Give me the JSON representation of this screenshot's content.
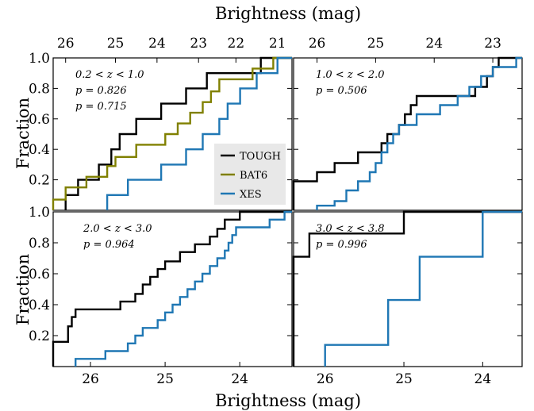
{
  "figure": {
    "top_xlabel": "Brightness (mag)",
    "bottom_xlabel": "Brightness (mag)",
    "ylabel_top": "Fraction",
    "ylabel_bottom": "Fraction"
  },
  "legend": {
    "placement": "inside top-left panel, lower right",
    "entries": [
      {
        "label": "TOUGH",
        "color": "#000000"
      },
      {
        "label": "BAT6",
        "color": "#808000"
      },
      {
        "label": "XES",
        "color": "#1f77b4"
      }
    ]
  },
  "chart_data": [
    {
      "type": "line",
      "panel": "top-left",
      "annotation": [
        "0.2 < z < 1.0",
        "p = 0.826",
        "p = 0.715"
      ],
      "annotation_colors": [
        "#000000",
        "#000000",
        "#808000"
      ],
      "x_top_ticks": [
        "26",
        "25",
        "24",
        "23",
        "22",
        "21"
      ],
      "x_top_tick_values": [
        26.3,
        25.1,
        24.1,
        23.1,
        22.2,
        21.2
      ],
      "xlim": [
        26.6,
        20.85
      ],
      "ylim": [
        0,
        1
      ],
      "yticks": [
        "0.2",
        "0.4",
        "0.6",
        "0.8",
        "1.0"
      ],
      "series": [
        {
          "name": "TOUGH",
          "color": "#000000",
          "points": [
            [
              26.3,
              0.1
            ],
            [
              26.0,
              0.2
            ],
            [
              25.5,
              0.3
            ],
            [
              25.2,
              0.4
            ],
            [
              25.0,
              0.5
            ],
            [
              24.6,
              0.6
            ],
            [
              24.0,
              0.7
            ],
            [
              23.4,
              0.8
            ],
            [
              22.9,
              0.9
            ],
            [
              21.6,
              1.0
            ]
          ]
        },
        {
          "name": "BAT6",
          "color": "#808000",
          "points": [
            [
              26.6,
              0.07
            ],
            [
              26.3,
              0.15
            ],
            [
              25.8,
              0.22
            ],
            [
              25.3,
              0.29
            ],
            [
              25.1,
              0.35
            ],
            [
              24.6,
              0.43
            ],
            [
              23.9,
              0.5
            ],
            [
              23.6,
              0.57
            ],
            [
              23.3,
              0.64
            ],
            [
              23.0,
              0.71
            ],
            [
              22.8,
              0.78
            ],
            [
              22.6,
              0.86
            ],
            [
              21.8,
              0.93
            ],
            [
              21.3,
              1.0
            ]
          ]
        },
        {
          "name": "XES",
          "color": "#1f77b4",
          "points": [
            [
              25.3,
              0.1
            ],
            [
              24.8,
              0.2
            ],
            [
              24.0,
              0.3
            ],
            [
              23.4,
              0.4
            ],
            [
              23.0,
              0.5
            ],
            [
              22.6,
              0.6
            ],
            [
              22.4,
              0.7
            ],
            [
              22.1,
              0.8
            ],
            [
              21.7,
              0.9
            ],
            [
              21.2,
              1.0
            ]
          ]
        }
      ]
    },
    {
      "type": "line",
      "panel": "top-right",
      "annotation": [
        "1.0 < z < 2.0",
        "p = 0.506"
      ],
      "annotation_colors": [
        "#000000",
        "#000000"
      ],
      "x_top_ticks": [
        "26",
        "25",
        "24",
        "23"
      ],
      "x_top_tick_values": [
        26.0,
        25.0,
        24.0,
        23.0
      ],
      "xlim": [
        26.4,
        22.5
      ],
      "ylim": [
        0,
        1
      ],
      "series": [
        {
          "name": "TOUGH",
          "color": "#000000",
          "points": [
            [
              26.4,
              0.19
            ],
            [
              26.0,
              0.25
            ],
            [
              25.7,
              0.31
            ],
            [
              25.3,
              0.38
            ],
            [
              24.9,
              0.44
            ],
            [
              24.8,
              0.5
            ],
            [
              24.6,
              0.56
            ],
            [
              24.5,
              0.63
            ],
            [
              24.4,
              0.69
            ],
            [
              24.3,
              0.75
            ],
            [
              23.7,
              0.75
            ],
            [
              23.3,
              0.81
            ],
            [
              23.1,
              0.88
            ],
            [
              23.0,
              0.94
            ],
            [
              22.9,
              1.0
            ]
          ]
        },
        {
          "name": "XES",
          "color": "#1f77b4",
          "points": [
            [
              26.0,
              0.03
            ],
            [
              25.7,
              0.06
            ],
            [
              25.5,
              0.13
            ],
            [
              25.3,
              0.19
            ],
            [
              25.1,
              0.25
            ],
            [
              25.0,
              0.31
            ],
            [
              24.9,
              0.38
            ],
            [
              24.8,
              0.44
            ],
            [
              24.7,
              0.5
            ],
            [
              24.6,
              0.56
            ],
            [
              24.3,
              0.63
            ],
            [
              23.9,
              0.69
            ],
            [
              23.6,
              0.75
            ],
            [
              23.4,
              0.81
            ],
            [
              23.2,
              0.88
            ],
            [
              23.0,
              0.94
            ],
            [
              22.6,
              1.0
            ]
          ]
        }
      ]
    },
    {
      "type": "line",
      "panel": "bottom-left",
      "annotation": [
        "2.0 < z < 3.0",
        "p = 0.964"
      ],
      "annotation_colors": [
        "#000000",
        "#000000"
      ],
      "x_bottom_ticks": [
        "26",
        "25",
        "24"
      ],
      "xlim": [
        26.5,
        23.3
      ],
      "ylim": [
        0,
        1
      ],
      "yticks": [
        "0.2",
        "0.4",
        "0.6",
        "0.8",
        "1.0"
      ],
      "series": [
        {
          "name": "TOUGH",
          "color": "#000000",
          "points": [
            [
              26.5,
              0.16
            ],
            [
              26.3,
              0.26
            ],
            [
              26.25,
              0.32
            ],
            [
              26.2,
              0.37
            ],
            [
              25.8,
              0.37
            ],
            [
              25.6,
              0.42
            ],
            [
              25.4,
              0.47
            ],
            [
              25.3,
              0.53
            ],
            [
              25.2,
              0.58
            ],
            [
              25.1,
              0.63
            ],
            [
              25.0,
              0.68
            ],
            [
              24.8,
              0.74
            ],
            [
              24.6,
              0.79
            ],
            [
              24.4,
              0.84
            ],
            [
              24.3,
              0.89
            ],
            [
              24.2,
              0.95
            ],
            [
              24.0,
              1.0
            ]
          ]
        },
        {
          "name": "XES",
          "color": "#1f77b4",
          "points": [
            [
              26.2,
              0.05
            ],
            [
              25.8,
              0.1
            ],
            [
              25.5,
              0.15
            ],
            [
              25.4,
              0.2
            ],
            [
              25.3,
              0.25
            ],
            [
              25.1,
              0.3
            ],
            [
              25.0,
              0.35
            ],
            [
              24.9,
              0.4
            ],
            [
              24.8,
              0.45
            ],
            [
              24.7,
              0.5
            ],
            [
              24.6,
              0.55
            ],
            [
              24.5,
              0.6
            ],
            [
              24.4,
              0.65
            ],
            [
              24.3,
              0.7
            ],
            [
              24.2,
              0.75
            ],
            [
              24.15,
              0.8
            ],
            [
              24.1,
              0.85
            ],
            [
              24.05,
              0.9
            ],
            [
              23.6,
              0.95
            ],
            [
              23.4,
              1.0
            ]
          ]
        }
      ]
    },
    {
      "type": "line",
      "panel": "bottom-right",
      "annotation": [
        "3.0 < z < 3.8",
        "p = 0.996"
      ],
      "annotation_colors": [
        "#000000",
        "#000000"
      ],
      "x_bottom_ticks": [
        "26",
        "25",
        "24"
      ],
      "xlim": [
        26.4,
        23.5
      ],
      "ylim": [
        0,
        1
      ],
      "series": [
        {
          "name": "TOUGH",
          "color": "#000000",
          "points": [
            [
              26.4,
              0.71
            ],
            [
              26.2,
              0.86
            ],
            [
              25.0,
              1.0
            ]
          ]
        },
        {
          "name": "XES",
          "color": "#1f77b4",
          "points": [
            [
              26.0,
              0.14
            ],
            [
              25.2,
              0.43
            ],
            [
              24.8,
              0.71
            ],
            [
              24.0,
              1.0
            ]
          ]
        }
      ]
    }
  ]
}
